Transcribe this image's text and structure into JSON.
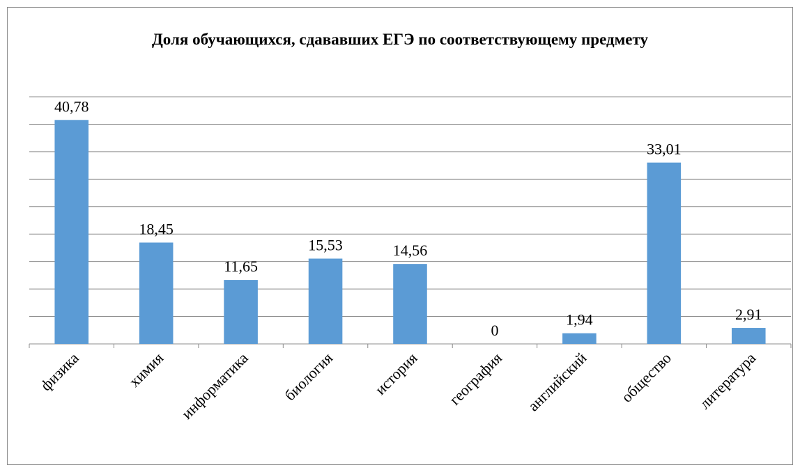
{
  "chart_data": {
    "type": "bar",
    "title": "Доля обучающихся, сдававших ЕГЭ по соответствующему предмету",
    "categories": [
      "физика",
      "химия",
      "информатика",
      "биология",
      "история",
      "география",
      "английский",
      "общество",
      "литература"
    ],
    "values": [
      40.78,
      18.45,
      11.65,
      15.53,
      14.56,
      0,
      1.94,
      33.01,
      2.91
    ],
    "value_labels": [
      "40,78",
      "18,45",
      "11,65",
      "15,53",
      "14,56",
      "0",
      "1,94",
      "33,01",
      "2,91"
    ],
    "color": "#5b9bd5",
    "ylim": [
      0,
      45
    ],
    "yticks": [
      0,
      5,
      10,
      15,
      20,
      25,
      30,
      35,
      40,
      45
    ],
    "grid": true
  }
}
